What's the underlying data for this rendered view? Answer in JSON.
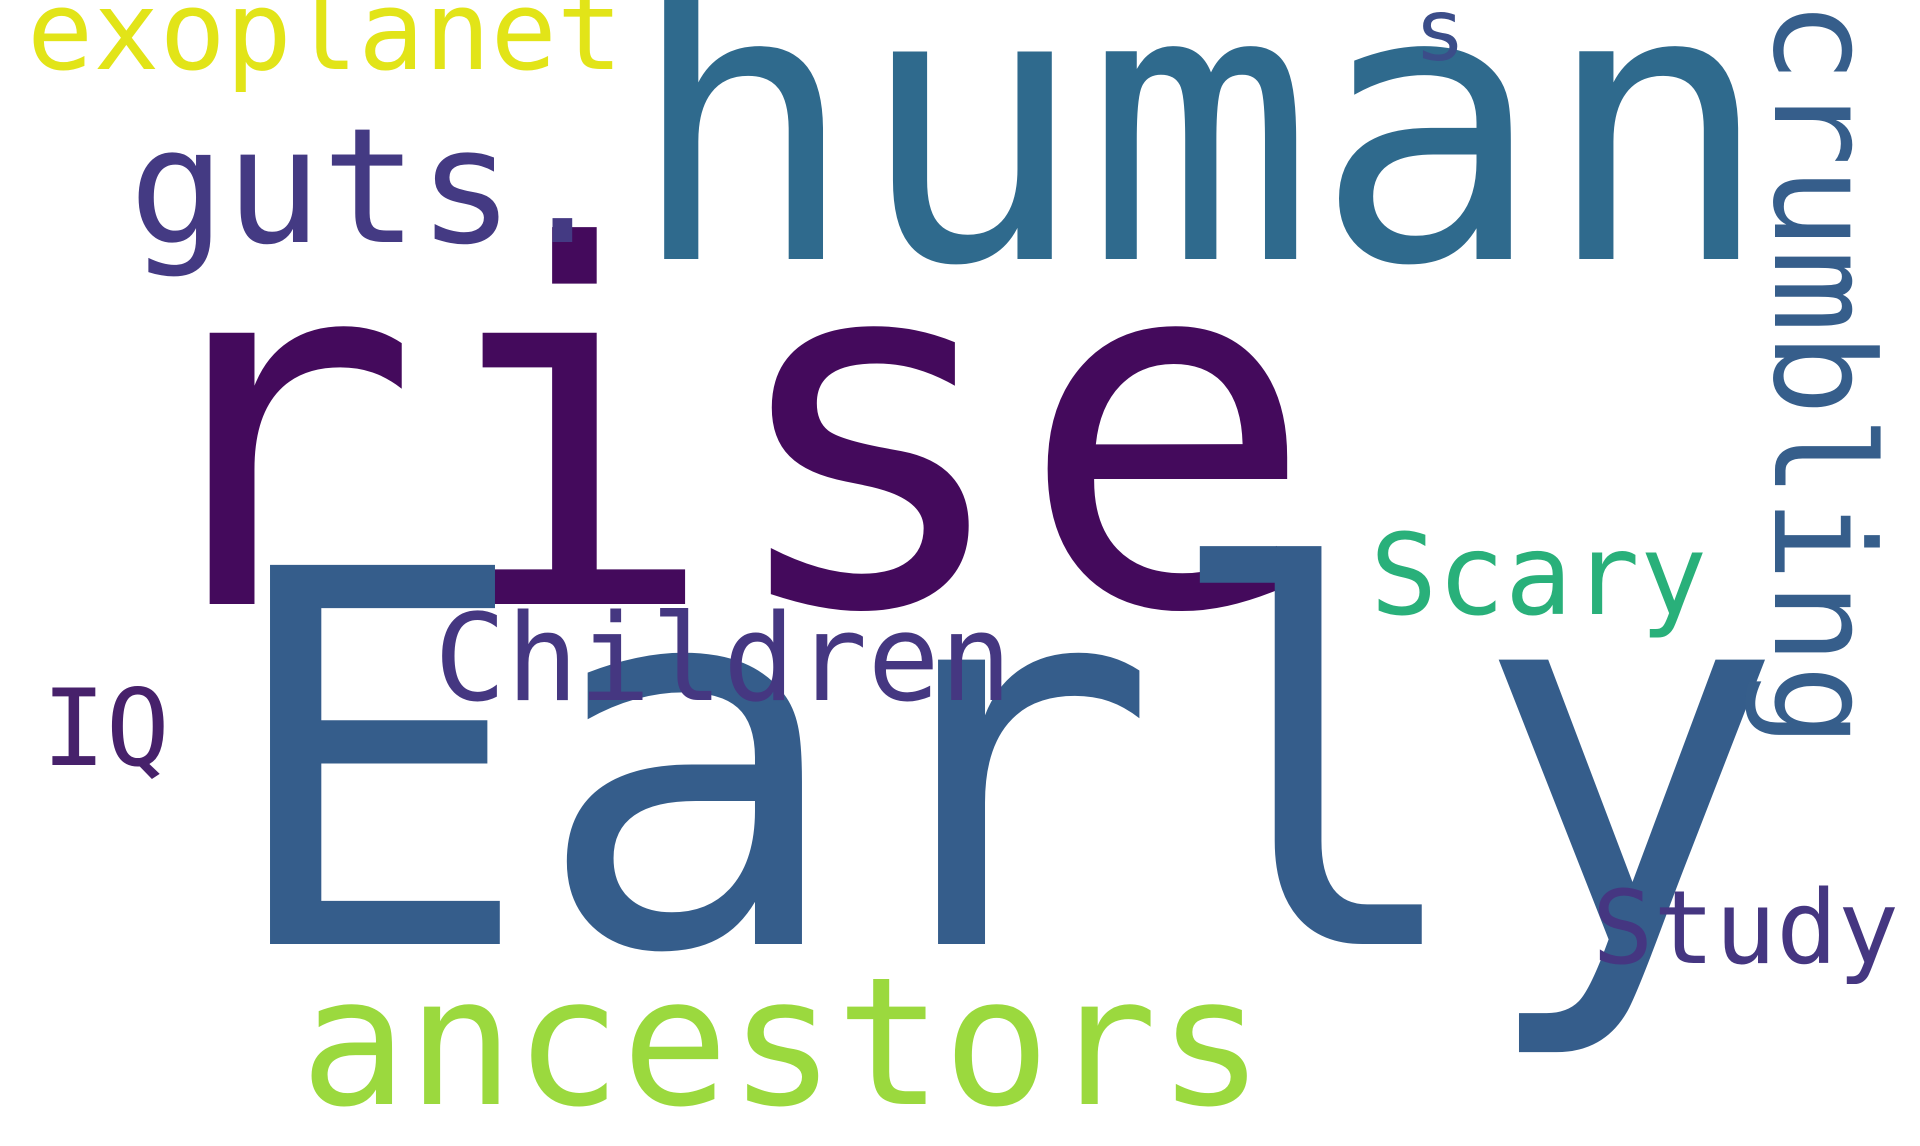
{
  "words": [
    {
      "text": "rise",
      "color": "#440a5c"
    },
    {
      "text": "Early",
      "color": "#355d8b"
    },
    {
      "text": "human",
      "color": "#2f6a8d"
    },
    {
      "text": "ancestors",
      "color": "#9bd93e"
    },
    {
      "text": "crumbling",
      "color": "#365e8b"
    },
    {
      "text": "guts.",
      "color": "#443a83"
    },
    {
      "text": "Children",
      "color": "#453781"
    },
    {
      "text": "Scary",
      "color": "#29b07a"
    },
    {
      "text": "exoplanet",
      "color": "#e2e418"
    },
    {
      "text": "Study",
      "color": "#453681"
    },
    {
      "text": "IQ",
      "color": "#47216b"
    },
    {
      "text": "s",
      "color": "#3b4d89"
    }
  ]
}
